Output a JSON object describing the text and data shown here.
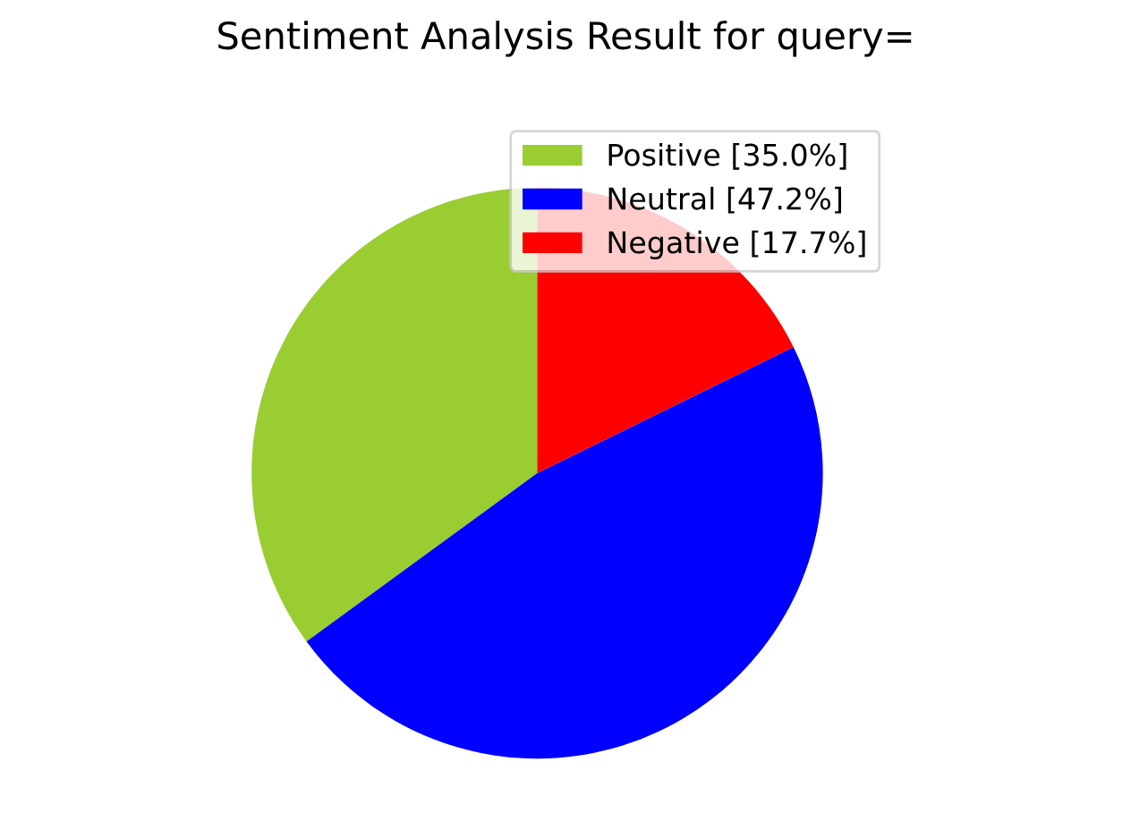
{
  "chart_data": {
    "type": "pie",
    "title": "Sentiment Analysis Result for query=",
    "categories": [
      "Positive [35.0%]",
      "Neutral [47.2%]",
      "Negative [17.7%]"
    ],
    "values": [
      35.0,
      47.2,
      17.7
    ],
    "colors": [
      "#9acd32",
      "#0000ff",
      "#ff0000"
    ],
    "legend": "top right"
  }
}
